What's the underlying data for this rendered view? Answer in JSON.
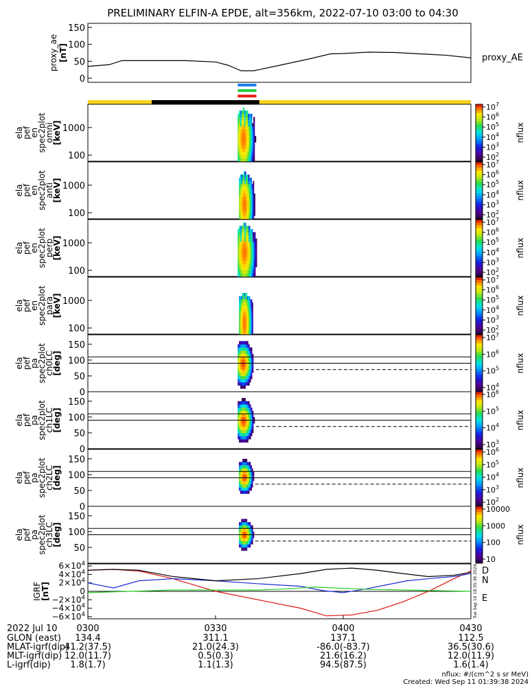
{
  "title": "PRELIMINARY ELFIN-A EPDE, alt=356km, 2022-07-10 03:00 to 04:30",
  "colors": {
    "background": "#ffffff",
    "axis": "#000000",
    "bar_gold": "#f5d21e",
    "bar_black": "#000000",
    "bar_blue": "#1e7ef0",
    "bar_green": "#22d24a",
    "bar_red": "#ee2222",
    "igrf_d": "#dd1111",
    "igrf_n": "#1a2bd6",
    "igrf_e": "#22cc22",
    "igrf_total": "#000000"
  },
  "chart_data": [
    {
      "id": "proxy_ae",
      "type": "line",
      "ylabel": [
        "proxy_ae",
        "[nT]"
      ],
      "legend": "proxy_AE",
      "ylim": [
        0,
        150
      ],
      "yticks": [
        "150",
        "100",
        "50",
        "0"
      ],
      "ytick_values": [
        150,
        100,
        50,
        0
      ],
      "x_minutes": [
        0,
        5,
        8,
        14,
        23,
        30,
        33,
        36,
        39,
        45,
        52,
        57,
        60,
        63,
        66,
        72,
        78,
        84,
        90
      ],
      "values": [
        35,
        40,
        52,
        52,
        52,
        48,
        38,
        22,
        22,
        38,
        57,
        72,
        73,
        75,
        77,
        76,
        72,
        68,
        60
      ]
    },
    {
      "id": "status_bar",
      "type": "table",
      "segments": [
        {
          "from_min": 0,
          "to_min": 15,
          "state": "gold"
        },
        {
          "from_min": 15,
          "to_min": 40.3,
          "state": "black"
        },
        {
          "from_min": 40.3,
          "to_min": 90,
          "state": "gold"
        }
      ],
      "markers": [
        {
          "color": "blue",
          "from_min": 35.2,
          "to_min": 39.6
        },
        {
          "color": "green",
          "from_min": 35.2,
          "to_min": 39.6
        },
        {
          "color": "red",
          "from_min": 35.2,
          "to_min": 39.6
        }
      ]
    },
    {
      "id": "omni",
      "type": "heatmap",
      "ylabel": [
        "ela",
        "pef",
        "en",
        "spec2plot",
        "omni",
        "[keV]"
      ],
      "zlabel": "nflux",
      "y_scale": "log",
      "ylim": [
        60,
        7000
      ],
      "yticks": [
        "1000",
        "100"
      ],
      "ytick_values": [
        1000,
        100
      ],
      "zticks": [
        "10^7",
        "10^6",
        "10^5",
        "10^4",
        "10^3",
        "10^2"
      ],
      "cell_from_min": 35.2,
      "cell_to_min": 39.5,
      "peak_min": 36.6,
      "peak_energy_keV": 400,
      "emax_keV": 5000
    },
    {
      "id": "anti",
      "type": "heatmap",
      "ylabel": [
        "ela",
        "pef",
        "en",
        "spec2plot",
        "anti",
        "[keV]"
      ],
      "zlabel": "nflux",
      "y_scale": "log",
      "ylim": [
        60,
        7000
      ],
      "yticks": [
        "1000",
        "100"
      ],
      "ytick_values": [
        1000,
        100
      ],
      "zticks": [
        "10^7",
        "10^6",
        "10^5",
        "10^4",
        "10^3",
        "10^2"
      ],
      "cell_from_min": 35.5,
      "cell_to_min": 39.3,
      "peak_min": 36.8,
      "peak_energy_keV": 200,
      "emax_keV": 3000
    },
    {
      "id": "perp",
      "type": "heatmap",
      "ylabel": [
        "ela",
        "pef",
        "en",
        "spec2plot",
        "perp",
        "[keV]"
      ],
      "zlabel": "nflux",
      "y_scale": "log",
      "ylim": [
        60,
        7000
      ],
      "yticks": [
        "1000",
        "100"
      ],
      "ytick_values": [
        1000,
        100
      ],
      "zticks": [
        "10^7",
        "10^6",
        "10^5",
        "10^4",
        "10^3",
        "10^2"
      ],
      "cell_from_min": 35.2,
      "cell_to_min": 39.7,
      "peak_min": 36.8,
      "peak_energy_keV": 450,
      "emax_keV": 5000
    },
    {
      "id": "para",
      "type": "heatmap",
      "ylabel": [
        "ela",
        "pef",
        "en",
        "spec2plot",
        "para",
        "[keV]"
      ],
      "zlabel": "nflux",
      "y_scale": "log",
      "ylim": [
        60,
        7000
      ],
      "yticks": [
        "1000",
        "100"
      ],
      "ytick_values": [
        1000,
        100
      ],
      "zticks": [
        "10^7",
        "10^6",
        "10^5",
        "10^4",
        "10^3",
        "10^2"
      ],
      "cell_from_min": 35.5,
      "cell_to_min": 38.8,
      "peak_min": 36.8,
      "peak_energy_keV": 150,
      "emax_keV": 2000
    },
    {
      "id": "ch0LC",
      "type": "heatmap",
      "ylabel": [
        "ela",
        "pef",
        "pa",
        "spec2plot",
        "ch0LC",
        "[deg]"
      ],
      "zlabel": "nflux",
      "ylim": [
        0,
        180
      ],
      "yticks": [
        "150",
        "100",
        "50",
        "0"
      ],
      "ytick_values": [
        150,
        100,
        50,
        0
      ],
      "zticks": [
        "10^7",
        "10^6",
        "10^5",
        "10^4"
      ],
      "cell_from_min": 35.2,
      "cell_to_min": 39.5,
      "peak_min": 36.5,
      "peak_pa_deg": 88,
      "pa_width_deg": 55,
      "lc_lines_deg": [
        110,
        90
      ],
      "dashed_lc_deg": 70
    },
    {
      "id": "ch1LC",
      "type": "heatmap",
      "ylabel": [
        "ela",
        "pef",
        "pa",
        "spec2plot",
        "ch1LC",
        "[deg]"
      ],
      "zlabel": "nflux",
      "ylim": [
        0,
        180
      ],
      "yticks": [
        "150",
        "100",
        "50",
        "0"
      ],
      "ytick_values": [
        150,
        100,
        50,
        0
      ],
      "zticks": [
        "10^6",
        "10^5",
        "10^4",
        "10^3"
      ],
      "cell_from_min": 35.2,
      "cell_to_min": 39.5,
      "peak_min": 36.6,
      "peak_pa_deg": 88,
      "pa_width_deg": 50,
      "lc_lines_deg": [
        110,
        90
      ],
      "dashed_lc_deg": 70
    },
    {
      "id": "ch2LC",
      "type": "heatmap",
      "ylabel": [
        "ela",
        "pef",
        "pa",
        "spec2plot",
        "ch2LC",
        "[deg]"
      ],
      "zlabel": "nflux",
      "ylim": [
        0,
        180
      ],
      "yticks": [
        "150",
        "100",
        "50",
        "0"
      ],
      "ytick_values": [
        150,
        100,
        50,
        0
      ],
      "zticks": [
        "10^6",
        "10^5",
        "10^4",
        "10^3",
        "10^2"
      ],
      "cell_from_min": 35.5,
      "cell_to_min": 39.3,
      "peak_min": 36.8,
      "peak_pa_deg": 92,
      "pa_width_deg": 40,
      "lc_lines_deg": [
        110,
        90
      ],
      "dashed_lc_deg": 70
    },
    {
      "id": "ch3LC",
      "type": "heatmap",
      "ylabel": [
        "ela",
        "pef",
        "pa",
        "spec2plot",
        "ch3LC",
        "[deg]"
      ],
      "zlabel": "nflux",
      "ylim": [
        0,
        180
      ],
      "yticks": [
        "150",
        "100",
        "50"
      ],
      "ytick_values": [
        150,
        100,
        50
      ],
      "zticks": [
        "10000",
        "1000",
        "100",
        "10"
      ],
      "cell_from_min": 35.5,
      "cell_to_min": 39.3,
      "peak_min": 36.8,
      "peak_pa_deg": 90,
      "pa_width_deg": 35,
      "lc_lines_deg": [
        110,
        90
      ],
      "dashed_lc_deg": 70
    },
    {
      "id": "igrf",
      "type": "line",
      "ylabel": [
        "IGRF",
        "[nT]"
      ],
      "ylim": [
        -65000,
        65000
      ],
      "yticks": [
        "6×10^4",
        "4×10^4",
        "2×10^4",
        "0",
        "−2×10^4",
        "−4×10^4",
        "−6×10^4"
      ],
      "ytick_values": [
        60000,
        40000,
        20000,
        0,
        -20000,
        -40000,
        -60000
      ],
      "legend": [
        "D",
        "N",
        "E"
      ],
      "series": [
        {
          "name": "D",
          "color": "red",
          "x": [
            0,
            6,
            12,
            20,
            25,
            30,
            40,
            50,
            56,
            62,
            68,
            74,
            80,
            86,
            90
          ],
          "y": [
            50000,
            52000,
            48000,
            30000,
            15000,
            0,
            -20000,
            -40000,
            -58000,
            -56000,
            -45000,
            -25000,
            0,
            30000,
            48000
          ]
        },
        {
          "name": "N",
          "color": "blue",
          "x": [
            0,
            6,
            12,
            20,
            30,
            40,
            50,
            55,
            60,
            65,
            70,
            75,
            80,
            86,
            90
          ],
          "y": [
            20000,
            8000,
            25000,
            30000,
            25000,
            18000,
            12000,
            2000,
            -3000,
            5000,
            15000,
            25000,
            30000,
            35000,
            42000
          ]
        },
        {
          "name": "E",
          "color": "green",
          "x": [
            0,
            10,
            20,
            30,
            40,
            45,
            50,
            53,
            58,
            65,
            75,
            90
          ],
          "y": [
            -3000,
            0,
            3000,
            3000,
            3000,
            5000,
            8000,
            10000,
            8000,
            5000,
            3000,
            0
          ]
        },
        {
          "name": "",
          "color": "black",
          "x": [
            0,
            6,
            12,
            20,
            30,
            40,
            50,
            56,
            62,
            68,
            74,
            80,
            86,
            90
          ],
          "y": [
            50000,
            52000,
            50000,
            35000,
            25000,
            30000,
            42000,
            52000,
            55000,
            50000,
            42000,
            35000,
            38000,
            45000
          ]
        }
      ],
      "side_text": "Tue Sep 10 18:35:36 2024"
    }
  ],
  "x_axis": {
    "labels": [
      "0300",
      "0330",
      "0400",
      "0430"
    ],
    "label_minutes": [
      0,
      30,
      60,
      90
    ],
    "date": "2022 Jul 10"
  },
  "ephemeris": [
    {
      "label": "GLON (east)",
      "values": [
        "134.4",
        "311.1",
        "137.1",
        "112.5"
      ]
    },
    {
      "label": "MLAT-igrf(dip)",
      "values": [
        "41.2(37.5)",
        "21.0(24.3)",
        "-86.0(-83.7)",
        "36.5(30.6)"
      ]
    },
    {
      "label": "MLT-igrf(dip)",
      "values": [
        "12.0(11.7)",
        "0.5(0.3)",
        "21.6(16.2)",
        "12.0(11.9)"
      ]
    },
    {
      "label": "L-igrf(dip)",
      "values": [
        "1.8(1.7)",
        "1.1(1.3)",
        "94.5(87.5)",
        "1.6(1.4)"
      ]
    }
  ],
  "footer": {
    "units": "nflux: #/(cm^2 s sr MeV)",
    "created": "Created: Wed Sep 11 01:39:38 2024"
  }
}
